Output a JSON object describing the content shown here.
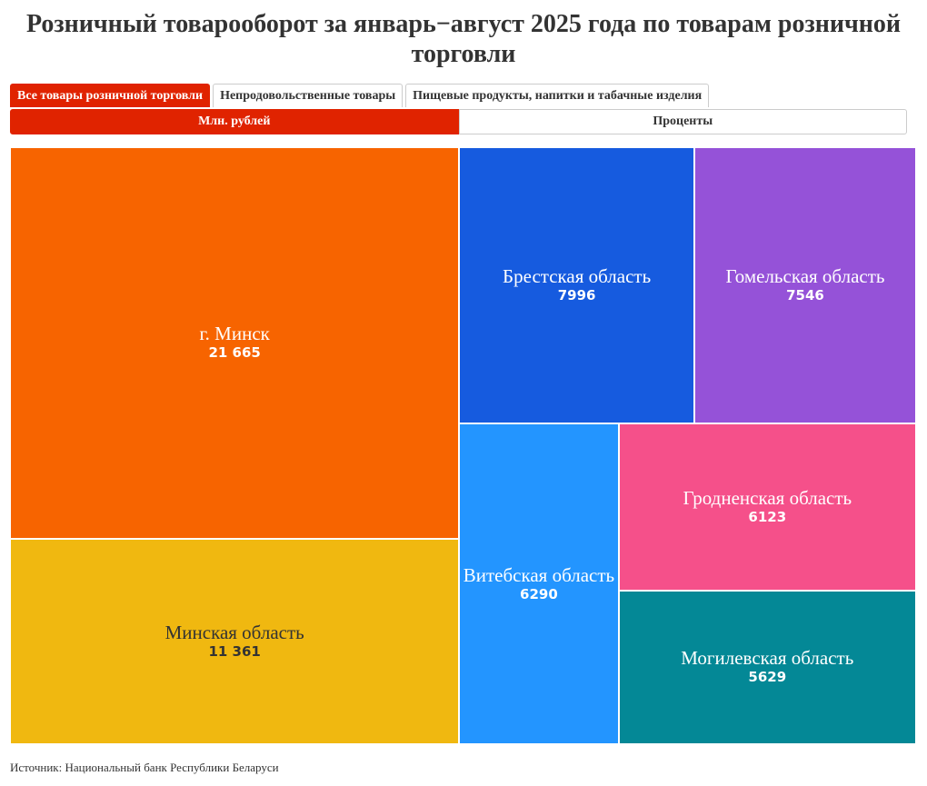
{
  "title": "Розничный товарооборот за январь−август 2025 года по товарам розничной торговли",
  "category_tabs": [
    {
      "label": "Все товары розничной торговли",
      "active": true
    },
    {
      "label": "Непродовольственные товары",
      "active": false
    },
    {
      "label": "Пищевые продукты, напитки и табачные изделия",
      "active": false
    }
  ],
  "unit_tabs": [
    {
      "label": "Млн. рублей",
      "active": true
    },
    {
      "label": "Проценты",
      "active": false
    }
  ],
  "source": "Источник: Национальный банк Республики Беларуси",
  "chart_data": {
    "type": "treemap",
    "title": "Розничный товарооборот за январь−август 2025 года по товарам розничной торговли",
    "unit": "Млн. рублей",
    "items": [
      {
        "name": "г. Минск",
        "value": 21665,
        "label": "21 665",
        "color": "#f76400",
        "text_color": "#ffffff"
      },
      {
        "name": "Минская область",
        "value": 11361,
        "label": "11 361",
        "color": "#f0b810",
        "text_color": "#333333"
      },
      {
        "name": "Брестская область",
        "value": 7996,
        "label": "7996",
        "color": "#165bdf",
        "text_color": "#ffffff"
      },
      {
        "name": "Гомельская область",
        "value": 7546,
        "label": "7546",
        "color": "#9552d8",
        "text_color": "#ffffff"
      },
      {
        "name": "Витебская область",
        "value": 6290,
        "label": "6290",
        "color": "#2395ff",
        "text_color": "#ffffff"
      },
      {
        "name": "Гродненская область",
        "value": 6123,
        "label": "6123",
        "color": "#f5508a",
        "text_color": "#ffffff"
      },
      {
        "name": "Могилевская область",
        "value": 5629,
        "label": "5629",
        "color": "#048896",
        "text_color": "#ffffff"
      }
    ]
  }
}
